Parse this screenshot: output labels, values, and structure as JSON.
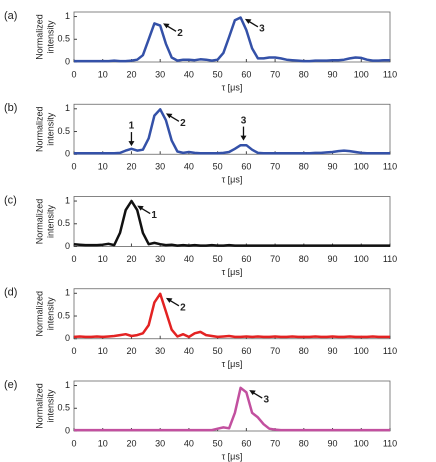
{
  "chart_data": [
    {
      "type": "line",
      "panel_label": "(a)",
      "ylabel": [
        "Normalized",
        "intensity"
      ],
      "xlabel": "τ [μs]",
      "xlim": [
        0,
        110
      ],
      "ylim": [
        0,
        1.1
      ],
      "xticks": [
        0,
        10,
        20,
        30,
        40,
        50,
        60,
        70,
        80,
        90,
        100,
        110
      ],
      "yticks": [
        0,
        0.5,
        1
      ],
      "series": [
        {
          "color": "#3451a8",
          "x": [
            0,
            2,
            4,
            6,
            8,
            10,
            12,
            14,
            16,
            18,
            20,
            22,
            24,
            26,
            28,
            30,
            32,
            34,
            36,
            38,
            40,
            42,
            44,
            46,
            48,
            50,
            52,
            54,
            56,
            58,
            60,
            62,
            64,
            66,
            68,
            70,
            72,
            74,
            76,
            78,
            80,
            82,
            84,
            86,
            88,
            90,
            92,
            94,
            96,
            98,
            100,
            102,
            104,
            106,
            108,
            110
          ],
          "values": [
            0.02,
            0.02,
            0.02,
            0.02,
            0.02,
            0.02,
            0.02,
            0.03,
            0.02,
            0.02,
            0.03,
            0.05,
            0.15,
            0.5,
            0.85,
            0.8,
            0.4,
            0.1,
            0.03,
            0.05,
            0.05,
            0.04,
            0.06,
            0.05,
            0.03,
            0.05,
            0.2,
            0.55,
            0.92,
            0.98,
            0.7,
            0.3,
            0.08,
            0.08,
            0.1,
            0.1,
            0.08,
            0.05,
            0.04,
            0.03,
            0.02,
            0.02,
            0.03,
            0.03,
            0.03,
            0.04,
            0.04,
            0.05,
            0.08,
            0.1,
            0.09,
            0.05,
            0.03,
            0.03,
            0.04,
            0.04
          ]
        }
      ],
      "annotations": [
        {
          "label": "2",
          "x": 31,
          "y": 0.85,
          "arrow": "left"
        },
        {
          "label": "3",
          "x": 59.5,
          "y": 0.95,
          "arrow": "left"
        }
      ]
    },
    {
      "type": "line",
      "panel_label": "(b)",
      "ylabel": [
        "Normalized",
        "intensity"
      ],
      "xlabel": "τ [μs]",
      "xlim": [
        0,
        110
      ],
      "ylim": [
        0,
        1.1
      ],
      "xticks": [
        0,
        10,
        20,
        30,
        40,
        50,
        60,
        70,
        80,
        90,
        100,
        110
      ],
      "yticks": [
        0,
        0.5,
        1
      ],
      "series": [
        {
          "color": "#3451a8",
          "x": [
            0,
            2,
            4,
            6,
            8,
            10,
            12,
            14,
            16,
            18,
            20,
            22,
            24,
            26,
            28,
            30,
            32,
            34,
            36,
            38,
            40,
            42,
            44,
            46,
            48,
            50,
            52,
            54,
            56,
            58,
            60,
            62,
            64,
            66,
            68,
            70,
            72,
            74,
            76,
            78,
            80,
            82,
            84,
            86,
            88,
            90,
            92,
            94,
            96,
            98,
            100,
            102,
            104,
            106,
            108,
            110
          ],
          "values": [
            0.02,
            0.02,
            0.02,
            0.02,
            0.02,
            0.02,
            0.02,
            0.02,
            0.03,
            0.08,
            0.12,
            0.08,
            0.1,
            0.35,
            0.85,
            0.99,
            0.75,
            0.3,
            0.06,
            0.03,
            0.05,
            0.03,
            0.02,
            0.02,
            0.02,
            0.02,
            0.03,
            0.05,
            0.12,
            0.2,
            0.2,
            0.1,
            0.03,
            0.02,
            0.02,
            0.02,
            0.02,
            0.02,
            0.02,
            0.02,
            0.02,
            0.02,
            0.03,
            0.03,
            0.04,
            0.05,
            0.07,
            0.08,
            0.07,
            0.05,
            0.03,
            0.02,
            0.02,
            0.02,
            0.02,
            0.02
          ]
        }
      ],
      "annotations": [
        {
          "label": "1",
          "x": 20,
          "y": 0.18,
          "arrow": "down"
        },
        {
          "label": "2",
          "x": 32,
          "y": 0.9,
          "arrow": "left"
        },
        {
          "label": "3",
          "x": 59,
          "y": 0.3,
          "arrow": "down"
        }
      ]
    },
    {
      "type": "line",
      "panel_label": "(c)",
      "ylabel": [
        "Normalized",
        "intensity"
      ],
      "xlabel": "τ [μs]",
      "xlim": [
        0,
        110
      ],
      "ylim": [
        0,
        1.1
      ],
      "xticks": [
        0,
        10,
        20,
        30,
        40,
        50,
        60,
        70,
        80,
        90,
        100,
        110
      ],
      "yticks": [
        0,
        0.5,
        1
      ],
      "series": [
        {
          "color": "#111111",
          "x": [
            0,
            2,
            4,
            6,
            8,
            10,
            12,
            14,
            16,
            18,
            20,
            22,
            24,
            26,
            28,
            30,
            32,
            34,
            36,
            38,
            40,
            42,
            44,
            46,
            48,
            50,
            52,
            54,
            56,
            58,
            60,
            62,
            64,
            66,
            68,
            70,
            72,
            74,
            76,
            78,
            80,
            82,
            84,
            86,
            88,
            90,
            92,
            94,
            96,
            98,
            100,
            102,
            104,
            106,
            108,
            110
          ],
          "values": [
            0.05,
            0.04,
            0.03,
            0.03,
            0.03,
            0.04,
            0.06,
            0.03,
            0.3,
            0.8,
            1.0,
            0.8,
            0.3,
            0.05,
            0.08,
            0.05,
            0.03,
            0.04,
            0.02,
            0.03,
            0.02,
            0.03,
            0.02,
            0.02,
            0.03,
            0.02,
            0.02,
            0.03,
            0.02,
            0.02,
            0.02,
            0.02,
            0.02,
            0.02,
            0.02,
            0.02,
            0.02,
            0.02,
            0.02,
            0.02,
            0.02,
            0.02,
            0.02,
            0.02,
            0.02,
            0.02,
            0.02,
            0.02,
            0.02,
            0.02,
            0.02,
            0.02,
            0.02,
            0.02,
            0.02,
            0.02
          ]
        }
      ],
      "annotations": [
        {
          "label": "1",
          "x": 22,
          "y": 0.9,
          "arrow": "left"
        }
      ]
    },
    {
      "type": "line",
      "panel_label": "(d)",
      "ylabel": [
        "Normalized",
        "intensity"
      ],
      "xlabel": "τ [μs]",
      "xlim": [
        0,
        110
      ],
      "ylim": [
        0,
        1.1
      ],
      "xticks": [
        0,
        10,
        20,
        30,
        40,
        50,
        60,
        70,
        80,
        90,
        100,
        110
      ],
      "yticks": [
        0,
        0.5,
        1
      ],
      "series": [
        {
          "color": "#e32222",
          "x": [
            0,
            2,
            4,
            6,
            8,
            10,
            12,
            14,
            16,
            18,
            20,
            22,
            24,
            26,
            28,
            30,
            32,
            34,
            36,
            38,
            40,
            42,
            44,
            46,
            48,
            50,
            52,
            54,
            56,
            58,
            60,
            62,
            64,
            66,
            68,
            70,
            72,
            74,
            76,
            78,
            80,
            82,
            84,
            86,
            88,
            90,
            92,
            94,
            96,
            98,
            100,
            102,
            104,
            106,
            108,
            110
          ],
          "values": [
            0.04,
            0.05,
            0.04,
            0.04,
            0.05,
            0.04,
            0.05,
            0.06,
            0.08,
            0.1,
            0.06,
            0.08,
            0.12,
            0.3,
            0.8,
            0.99,
            0.6,
            0.2,
            0.05,
            0.1,
            0.04,
            0.12,
            0.15,
            0.08,
            0.06,
            0.04,
            0.05,
            0.06,
            0.04,
            0.04,
            0.05,
            0.04,
            0.05,
            0.04,
            0.04,
            0.05,
            0.04,
            0.04,
            0.05,
            0.04,
            0.04,
            0.04,
            0.05,
            0.04,
            0.04,
            0.05,
            0.04,
            0.04,
            0.05,
            0.04,
            0.04,
            0.04,
            0.05,
            0.04,
            0.04,
            0.04
          ]
        }
      ],
      "annotations": [
        {
          "label": "2",
          "x": 32,
          "y": 0.9,
          "arrow": "left"
        }
      ]
    },
    {
      "type": "line",
      "panel_label": "(e)",
      "ylabel": [
        "Normalized",
        "intensity"
      ],
      "xlabel": "τ [μs]",
      "xlim": [
        0,
        110
      ],
      "ylim": [
        0,
        1.1
      ],
      "xticks": [
        0,
        10,
        20,
        30,
        40,
        50,
        60,
        70,
        80,
        90,
        100,
        110
      ],
      "yticks": [
        0,
        0.5,
        1
      ],
      "series": [
        {
          "color": "#c2509f",
          "x": [
            0,
            2,
            4,
            6,
            8,
            10,
            12,
            14,
            16,
            18,
            20,
            22,
            24,
            26,
            28,
            30,
            32,
            34,
            36,
            38,
            40,
            42,
            44,
            46,
            48,
            50,
            52,
            54,
            56,
            58,
            60,
            62,
            64,
            66,
            68,
            70,
            72,
            74,
            76,
            78,
            80,
            82,
            84,
            86,
            88,
            90,
            92,
            94,
            96,
            98,
            100,
            102,
            104,
            106,
            108,
            110
          ],
          "values": [
            0.02,
            0.02,
            0.02,
            0.02,
            0.02,
            0.02,
            0.02,
            0.02,
            0.02,
            0.02,
            0.02,
            0.02,
            0.02,
            0.02,
            0.02,
            0.02,
            0.02,
            0.02,
            0.02,
            0.02,
            0.02,
            0.02,
            0.02,
            0.02,
            0.02,
            0.05,
            0.08,
            0.06,
            0.4,
            0.95,
            0.85,
            0.4,
            0.3,
            0.15,
            0.05,
            0.03,
            0.02,
            0.02,
            0.02,
            0.02,
            0.02,
            0.02,
            0.02,
            0.02,
            0.02,
            0.02,
            0.02,
            0.02,
            0.02,
            0.02,
            0.02,
            0.02,
            0.02,
            0.02,
            0.02,
            0.02
          ]
        }
      ],
      "annotations": [
        {
          "label": "3",
          "x": 61,
          "y": 0.9,
          "arrow": "left"
        }
      ]
    }
  ]
}
